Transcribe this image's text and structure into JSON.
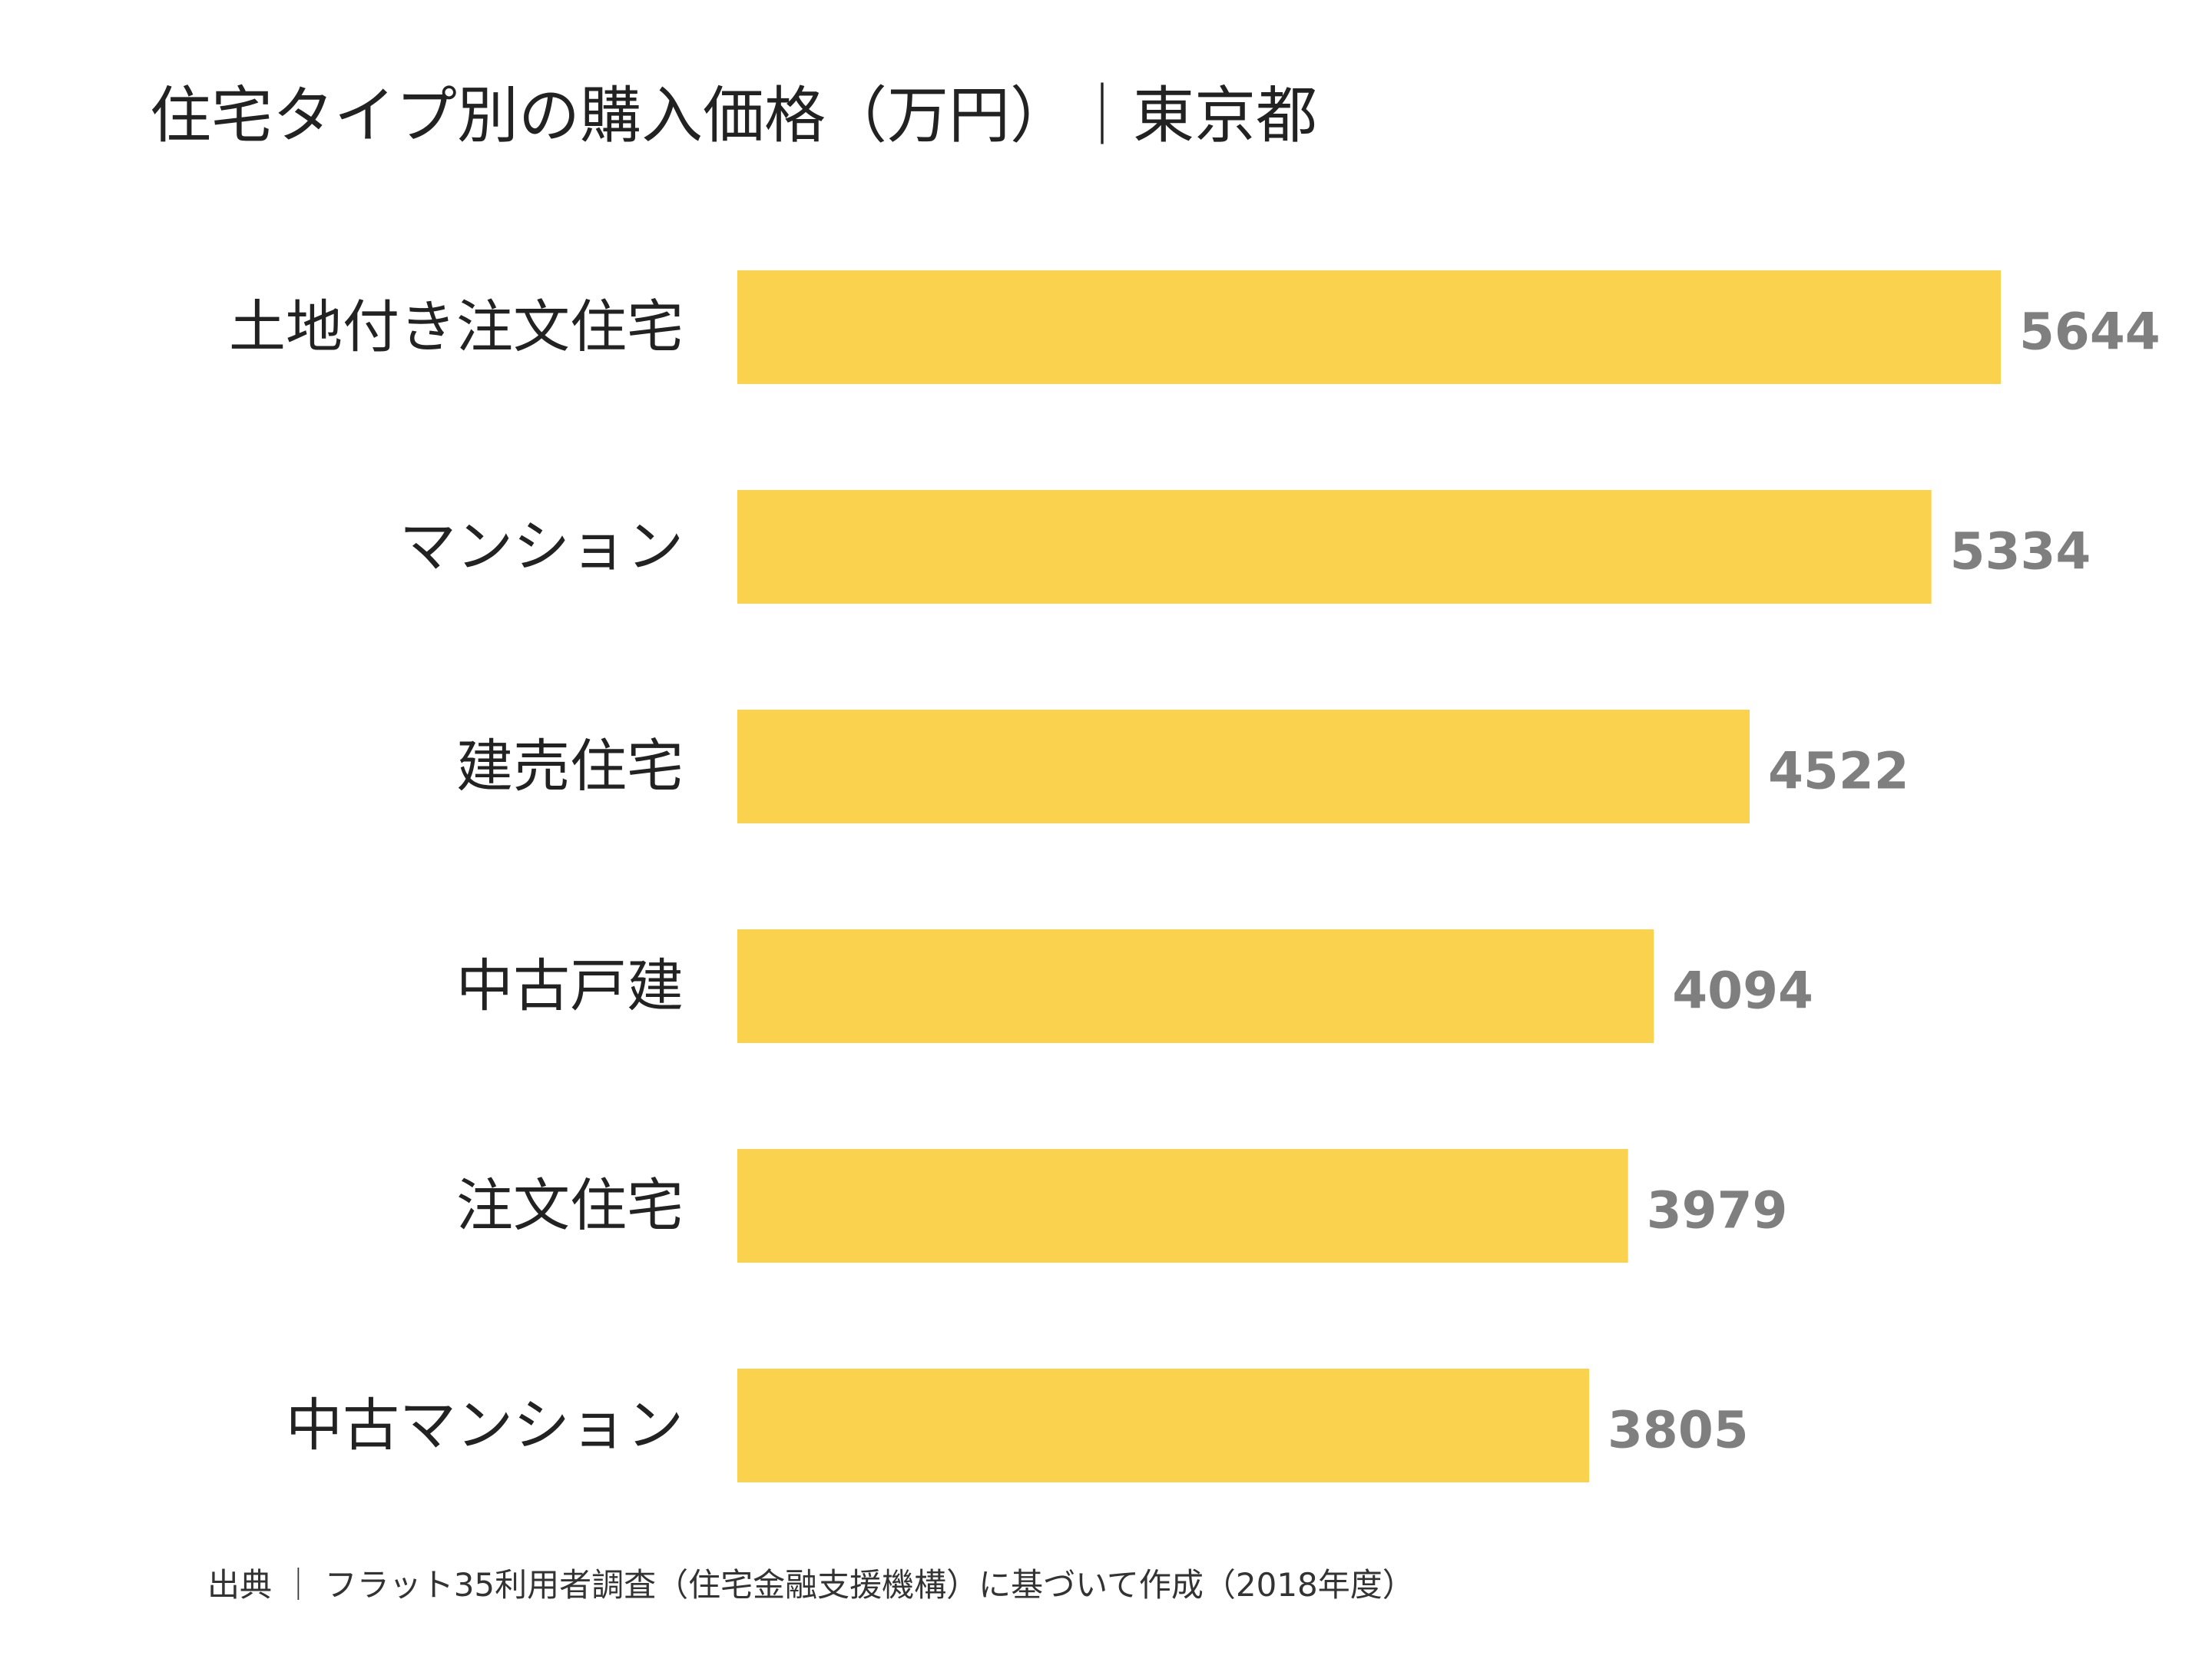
{
  "chart_data": {
    "type": "bar",
    "orientation": "horizontal",
    "title": "住宅タイプ別の購入価格（万円）｜東京都",
    "categories": [
      "土地付き注文住宅",
      "マンション",
      "建売住宅",
      "中古戸建",
      "注文住宅",
      "中古マンション"
    ],
    "values": [
      5644,
      5334,
      4522,
      4094,
      3979,
      3805
    ],
    "xlabel": "",
    "ylabel": "",
    "xlim": [
      0,
      5644
    ],
    "grid": false,
    "legend": "none",
    "bar_color": "#FBD24E",
    "value_label_color": "#7F7F7F",
    "source": "出典 ｜ フラット35利用者調査（住宅金融支援機構）に基づいて作成（2018年度）"
  }
}
